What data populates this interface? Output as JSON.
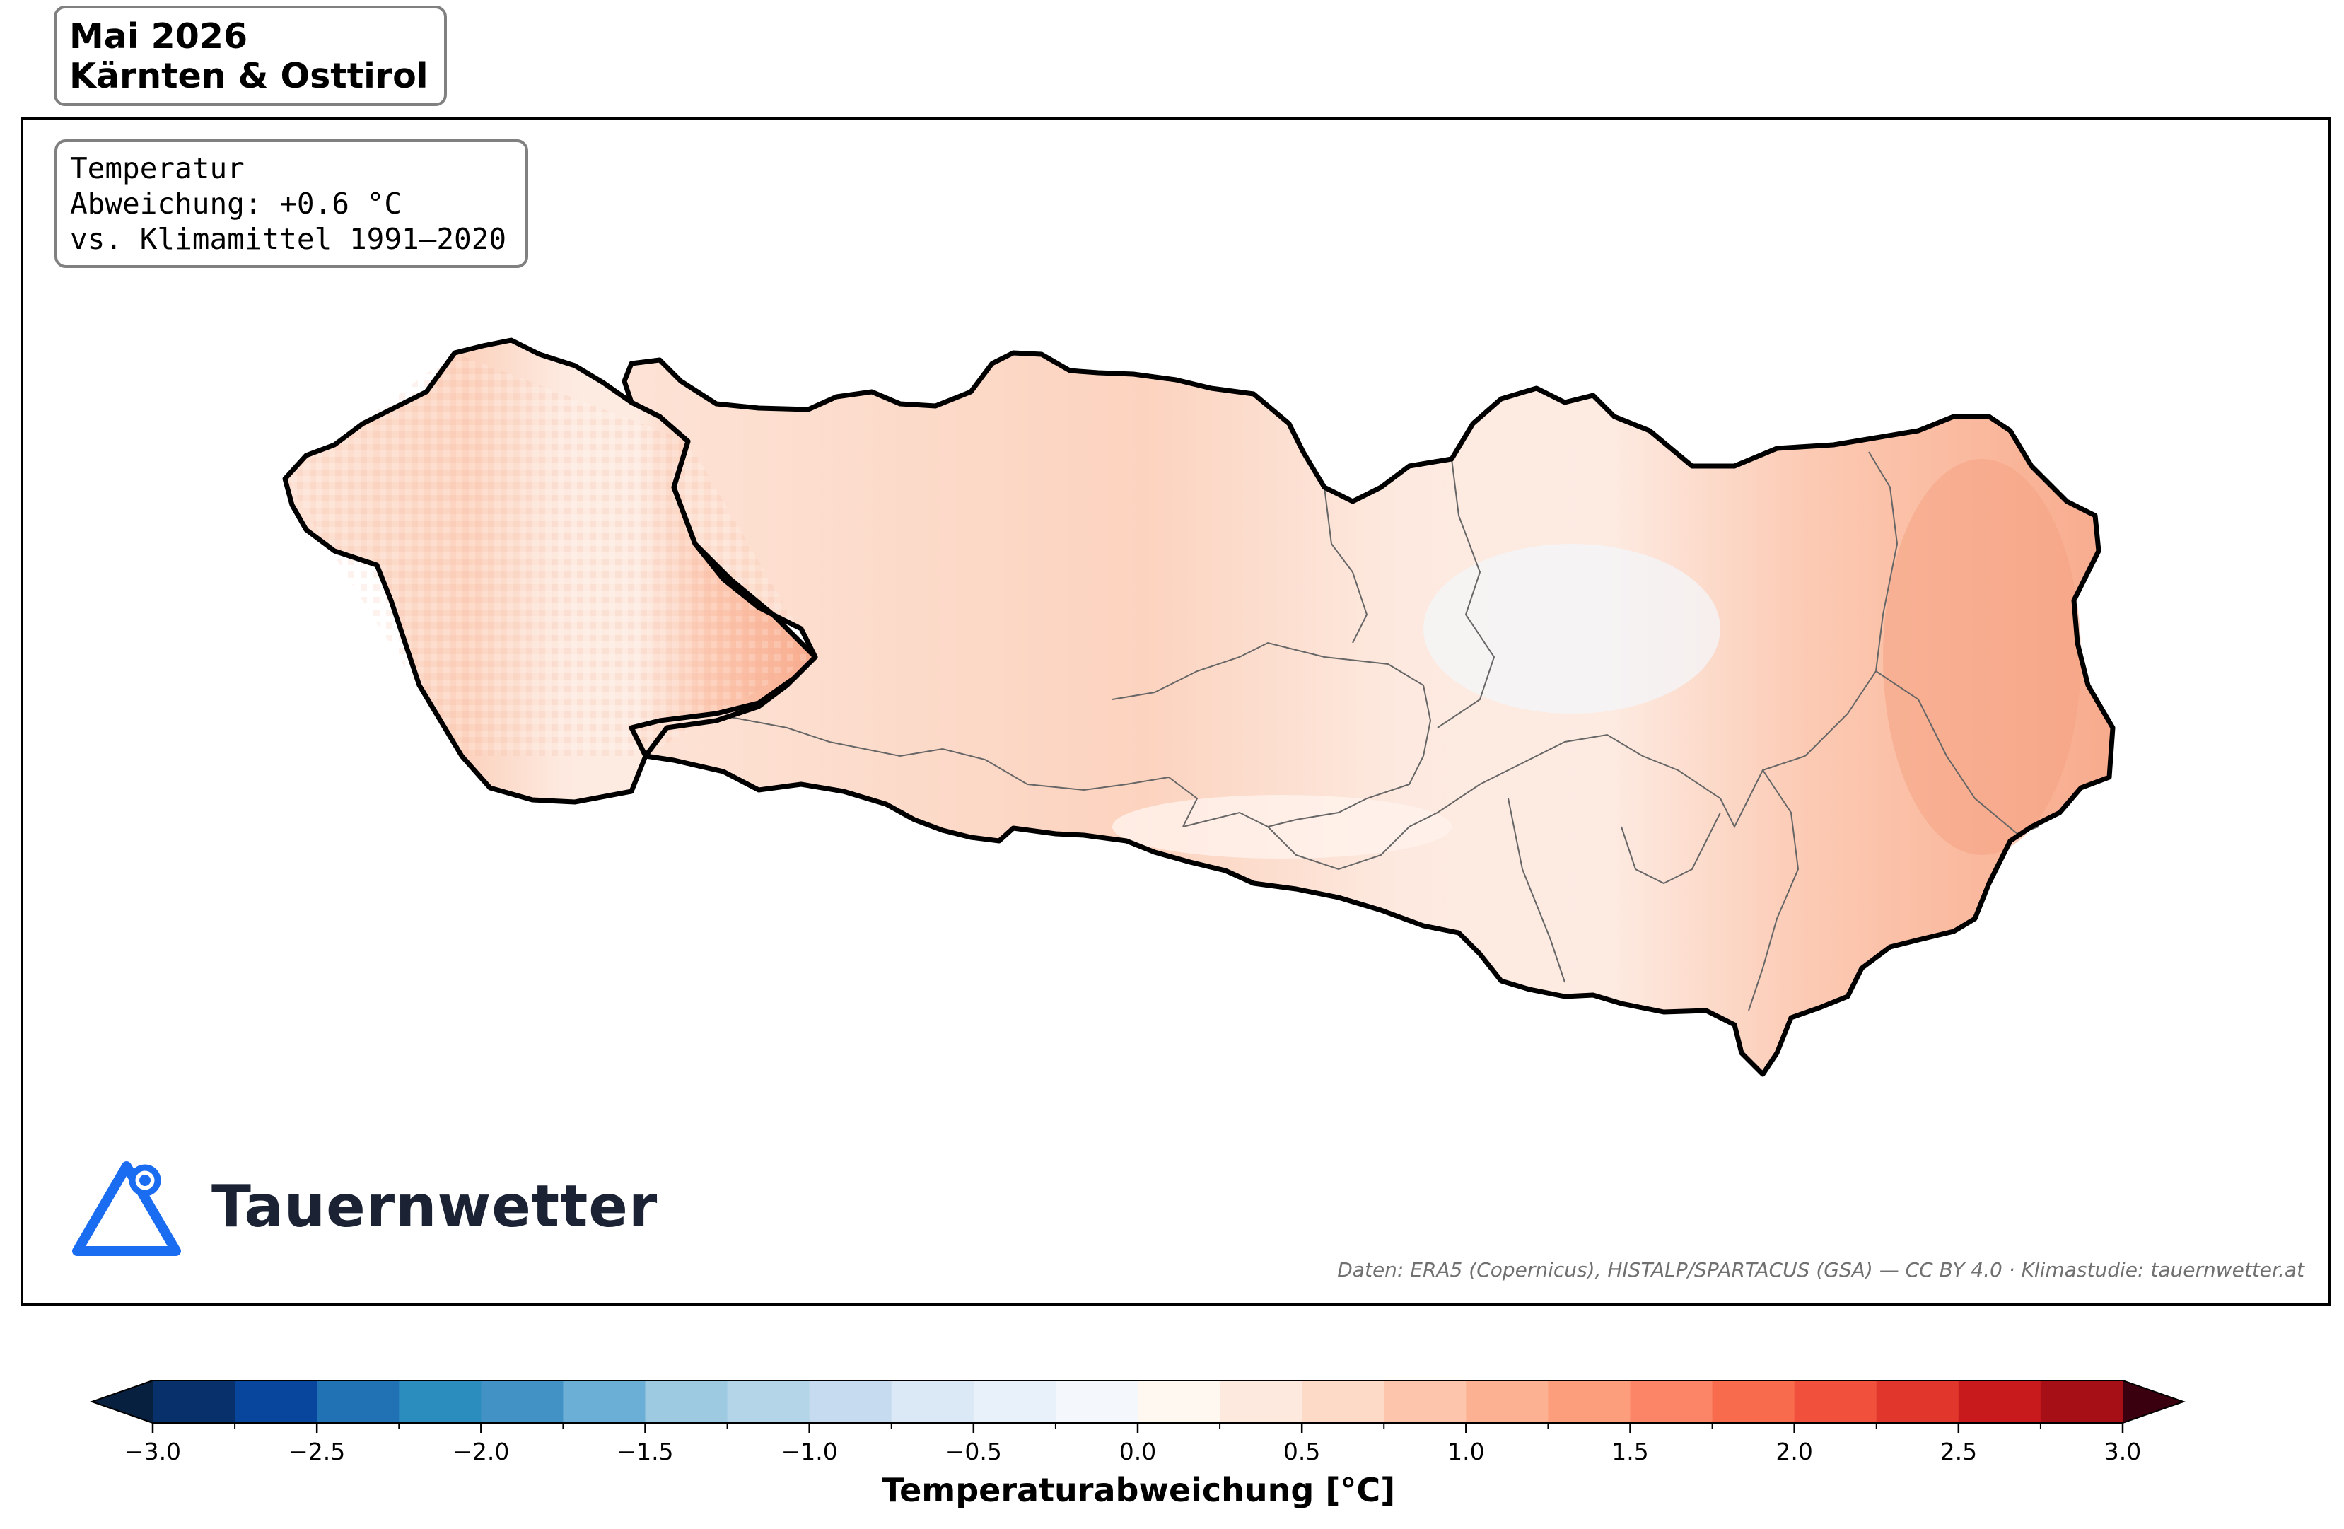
{
  "title": {
    "line1": "Mai 2026",
    "line2": "Kärnten & Osttirol"
  },
  "info": {
    "line1": "Temperatur",
    "line2": "Abweichung: +0.6 °C",
    "line3": "vs. Klimamittel 1991–2020"
  },
  "logo": {
    "text": "Tauernwetter",
    "icon": "mountain-pin-icon",
    "color": "#1a6cf0"
  },
  "credit": "Daten: ERA5 (Copernicus), HISTALP/SPARTACUS (GSA) — CC BY 4.0  ·  Klimastudie: tauernwetter.at",
  "map": {
    "regions": [
      "Osttirol",
      "Kärnten"
    ],
    "mean_anomaly_c": 0.6,
    "typical_fill": "#fcd5c2",
    "warmest_fill": "#f7a98a",
    "coolest_fill": "#f2f6fb"
  },
  "colorbar": {
    "label": "Temperaturabweichung [°C]",
    "min": -3.0,
    "max": 3.0,
    "step": 0.25,
    "extend": "both",
    "under_color": "#08203f",
    "over_color": "#3b0010",
    "colors": [
      "#08306b",
      "#08459c",
      "#2171b5",
      "#2b8cbe",
      "#4292c6",
      "#6baed6",
      "#9ecae1",
      "#b4d5e8",
      "#c6dbef",
      "#dbe9f6",
      "#e8f0f9",
      "#f4f8fc",
      "#fff8f1",
      "#fee9df",
      "#fdd9c8",
      "#fcc5ac",
      "#fcb292",
      "#fc9d7b",
      "#fb8566",
      "#f96b4d",
      "#f0503c",
      "#e0362b",
      "#c8191d",
      "#a50f15"
    ],
    "ticks": [
      "−3.0",
      "−2.5",
      "−2.0",
      "−1.5",
      "−1.0",
      "−0.5",
      "0.0",
      "0.5",
      "1.0",
      "1.5",
      "2.0",
      "2.5",
      "3.0"
    ]
  }
}
